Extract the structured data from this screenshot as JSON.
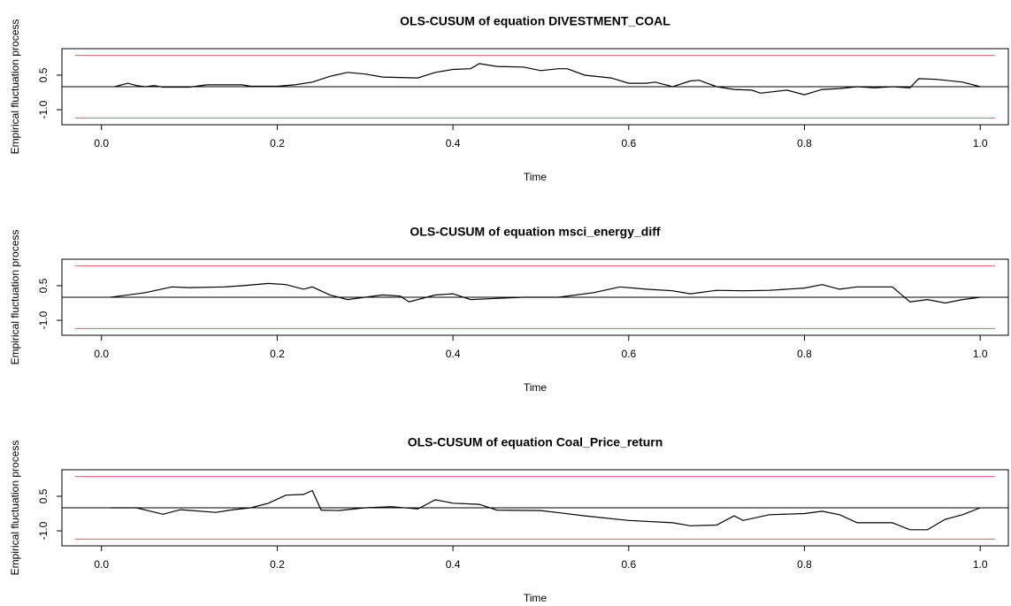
{
  "chart_data": [
    {
      "type": "line",
      "title": "OLS-CUSUM of equation DIVESTMENT_COAL",
      "xlabel": "Time",
      "ylabel": "Empirical fluctuation process",
      "x": [
        0.015,
        0.03,
        0.04,
        0.05,
        0.06,
        0.07,
        0.1,
        0.12,
        0.16,
        0.17,
        0.2,
        0.22,
        0.24,
        0.26,
        0.28,
        0.3,
        0.32,
        0.36,
        0.38,
        0.4,
        0.42,
        0.43,
        0.45,
        0.48,
        0.5,
        0.52,
        0.53,
        0.55,
        0.58,
        0.6,
        0.62,
        0.63,
        0.65,
        0.67,
        0.68,
        0.7,
        0.72,
        0.74,
        0.75,
        0.78,
        0.8,
        0.82,
        0.84,
        0.86,
        0.88,
        0.9,
        0.92,
        0.93,
        0.95,
        0.98,
        1.0
      ],
      "values": [
        0,
        0.15,
        0.05,
        0,
        0.05,
        -0.02,
        -0.02,
        0.08,
        0.08,
        0.02,
        0.02,
        0.08,
        0.2,
        0.45,
        0.62,
        0.55,
        0.42,
        0.38,
        0.62,
        0.75,
        0.78,
        1.0,
        0.88,
        0.85,
        0.7,
        0.78,
        0.78,
        0.5,
        0.38,
        0.15,
        0.15,
        0.2,
        0,
        0.25,
        0.28,
        0,
        -0.12,
        -0.15,
        -0.28,
        -0.15,
        -0.35,
        -0.12,
        -0.08,
        0,
        -0.05,
        0,
        -0.05,
        0.35,
        0.32,
        0.2,
        0
      ],
      "color": "#000000",
      "boundary": 1.358,
      "boundary_color": "#e06070",
      "reference_line": 0,
      "xlim": [
        -0.045,
        1.032
      ],
      "ylim": [
        -1.65,
        1.65
      ],
      "xticks": [
        {
          "value": 0,
          "label": "0.0"
        },
        0.2,
        0.4,
        0.6,
        0.8,
        {
          "value": 1,
          "label": "1.0"
        }
      ],
      "yticks": [
        {
          "value": -1,
          "label": "-1.0"
        },
        0.5
      ]
    },
    {
      "type": "line",
      "title": "OLS-CUSUM of equation msci_energy_diff",
      "xlabel": "Time",
      "ylabel": "Empirical fluctuation process",
      "x": [
        0.01,
        0.05,
        0.08,
        0.1,
        0.14,
        0.16,
        0.19,
        0.21,
        0.23,
        0.24,
        0.26,
        0.28,
        0.3,
        0.32,
        0.34,
        0.35,
        0.38,
        0.4,
        0.42,
        0.45,
        0.48,
        0.52,
        0.56,
        0.59,
        0.62,
        0.65,
        0.67,
        0.7,
        0.73,
        0.76,
        0.8,
        0.82,
        0.84,
        0.86,
        0.88,
        0.9,
        0.92,
        0.94,
        0.96,
        0.98,
        1.0
      ],
      "values": [
        0,
        0.2,
        0.45,
        0.42,
        0.45,
        0.5,
        0.6,
        0.55,
        0.35,
        0.45,
        0.1,
        -0.1,
        0,
        0.1,
        0.05,
        -0.2,
        0.1,
        0.15,
        -0.1,
        -0.05,
        0,
        0,
        0.2,
        0.45,
        0.35,
        0.28,
        0.15,
        0.3,
        0.28,
        0.3,
        0.4,
        0.55,
        0.35,
        0.45,
        0.45,
        0.45,
        -0.2,
        -0.1,
        -0.25,
        -0.1,
        0
      ],
      "color": "#000000",
      "boundary": 1.358,
      "boundary_color": "#e06070",
      "reference_line": 0,
      "xlim": [
        -0.045,
        1.032
      ],
      "ylim": [
        -1.65,
        1.65
      ],
      "xticks": [
        {
          "value": 0,
          "label": "0.0"
        },
        0.2,
        0.4,
        0.6,
        0.8,
        {
          "value": 1,
          "label": "1.0"
        }
      ],
      "yticks": [
        {
          "value": -1,
          "label": "-1.0"
        },
        0.5
      ]
    },
    {
      "type": "line",
      "title": "OLS-CUSUM of equation Coal_Price_return",
      "xlabel": "Time",
      "ylabel": "Empirical fluctuation process",
      "x": [
        0.01,
        0.04,
        0.07,
        0.09,
        0.13,
        0.15,
        0.17,
        0.19,
        0.21,
        0.23,
        0.24,
        0.25,
        0.27,
        0.3,
        0.33,
        0.36,
        0.38,
        0.4,
        0.43,
        0.45,
        0.5,
        0.55,
        0.6,
        0.65,
        0.67,
        0.7,
        0.72,
        0.73,
        0.76,
        0.8,
        0.82,
        0.84,
        0.86,
        0.9,
        0.92,
        0.94,
        0.96,
        0.98,
        1.0
      ],
      "values": [
        0,
        0,
        -0.28,
        -0.08,
        -0.2,
        -0.08,
        0,
        0.2,
        0.55,
        0.58,
        0.75,
        -0.1,
        -0.12,
        0,
        0.05,
        -0.05,
        0.35,
        0.2,
        0.15,
        -0.1,
        -0.12,
        -0.35,
        -0.55,
        -0.65,
        -0.78,
        -0.75,
        -0.35,
        -0.55,
        -0.3,
        -0.25,
        -0.15,
        -0.3,
        -0.65,
        -0.65,
        -0.95,
        -0.95,
        -0.5,
        -0.3,
        0
      ],
      "color": "#000000",
      "boundary": 1.358,
      "boundary_color": "#e06070",
      "reference_line": 0,
      "xlim": [
        -0.045,
        1.032
      ],
      "ylim": [
        -1.65,
        1.65
      ],
      "xticks": [
        {
          "value": 0,
          "label": "0.0"
        },
        0.2,
        0.4,
        0.6,
        0.8,
        {
          "value": 1,
          "label": "1.0"
        }
      ],
      "yticks": [
        {
          "value": -1,
          "label": "-1.0"
        },
        0.5
      ]
    }
  ]
}
